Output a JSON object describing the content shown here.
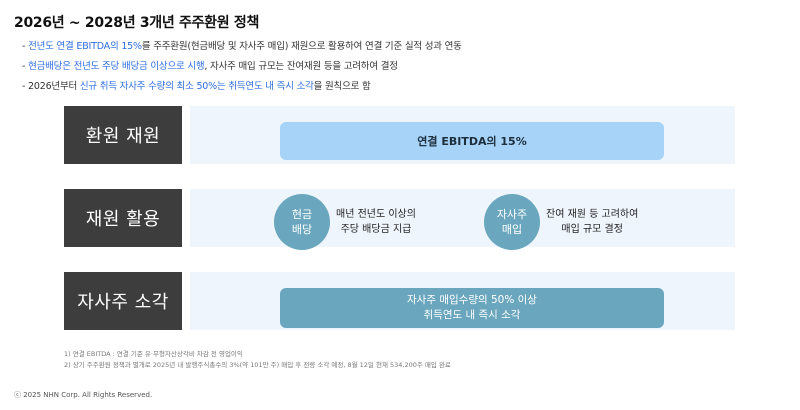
{
  "title": "2026년 ~ 2028년 3개년 주주환원 정책",
  "bullets": [
    {
      "pre": "- ",
      "hl": "전년도 연결 EBITDA의 15%",
      "post": "를 주주환원(현금배당 및 자사주 매입) 재원으로 활용하여 연결 기준 실적 성과 연동"
    },
    {
      "pre": "- ",
      "hl": "현금배당은 전년도 주당 배당금 이상으로 시행",
      "post": ", 자사주 매입 규모는 잔여재원 등을 고려하여 결정"
    },
    {
      "pre": "- 2026년부터 ",
      "hl": "신규 취득 자사주 수량의 최소 50%는 취득연도 내 즉시 소각",
      "post": "을 원칙으로 함"
    }
  ],
  "rows": {
    "source": {
      "label": "환원 재원",
      "value": "연결 EBITDA의 15%"
    },
    "usage": {
      "label": "재원 활용",
      "cash": {
        "line1": "현금",
        "line2": "배당",
        "desc1": "매년 전년도 이상의",
        "desc2": "주당 배당금 지급"
      },
      "buyback": {
        "line1": "자사주",
        "line2": "매입",
        "desc1": "잔여 재원 등 고려하여",
        "desc2": "매입 규모 결정"
      }
    },
    "cancel": {
      "label": "자사주 소각",
      "line1": "자사주 매입수량의 50% 이상",
      "line2": "취득연도 내 즉시 소각"
    }
  },
  "footnotes": [
    "1) 연결 EBITDA : 연결 기준 유·무형자산상각비 차감 전 영업이익",
    "2) 상기 주주환원 정책과 별개로 2025년 내 발행주식총수의 3%(약 101만 주) 매입 후 전량 소각 예정, 8월 12일 현재 534,200주 매입 완료"
  ],
  "copyright": "ⓒ 2025 NHN Corp. All Rights Reserved.",
  "colors": {
    "highlight": "#2f6fe0",
    "dark_box": "#3d3d3d",
    "panel": "#eef5fc",
    "light_pill": "#a6d3f7",
    "teal": "#6aa7be"
  }
}
